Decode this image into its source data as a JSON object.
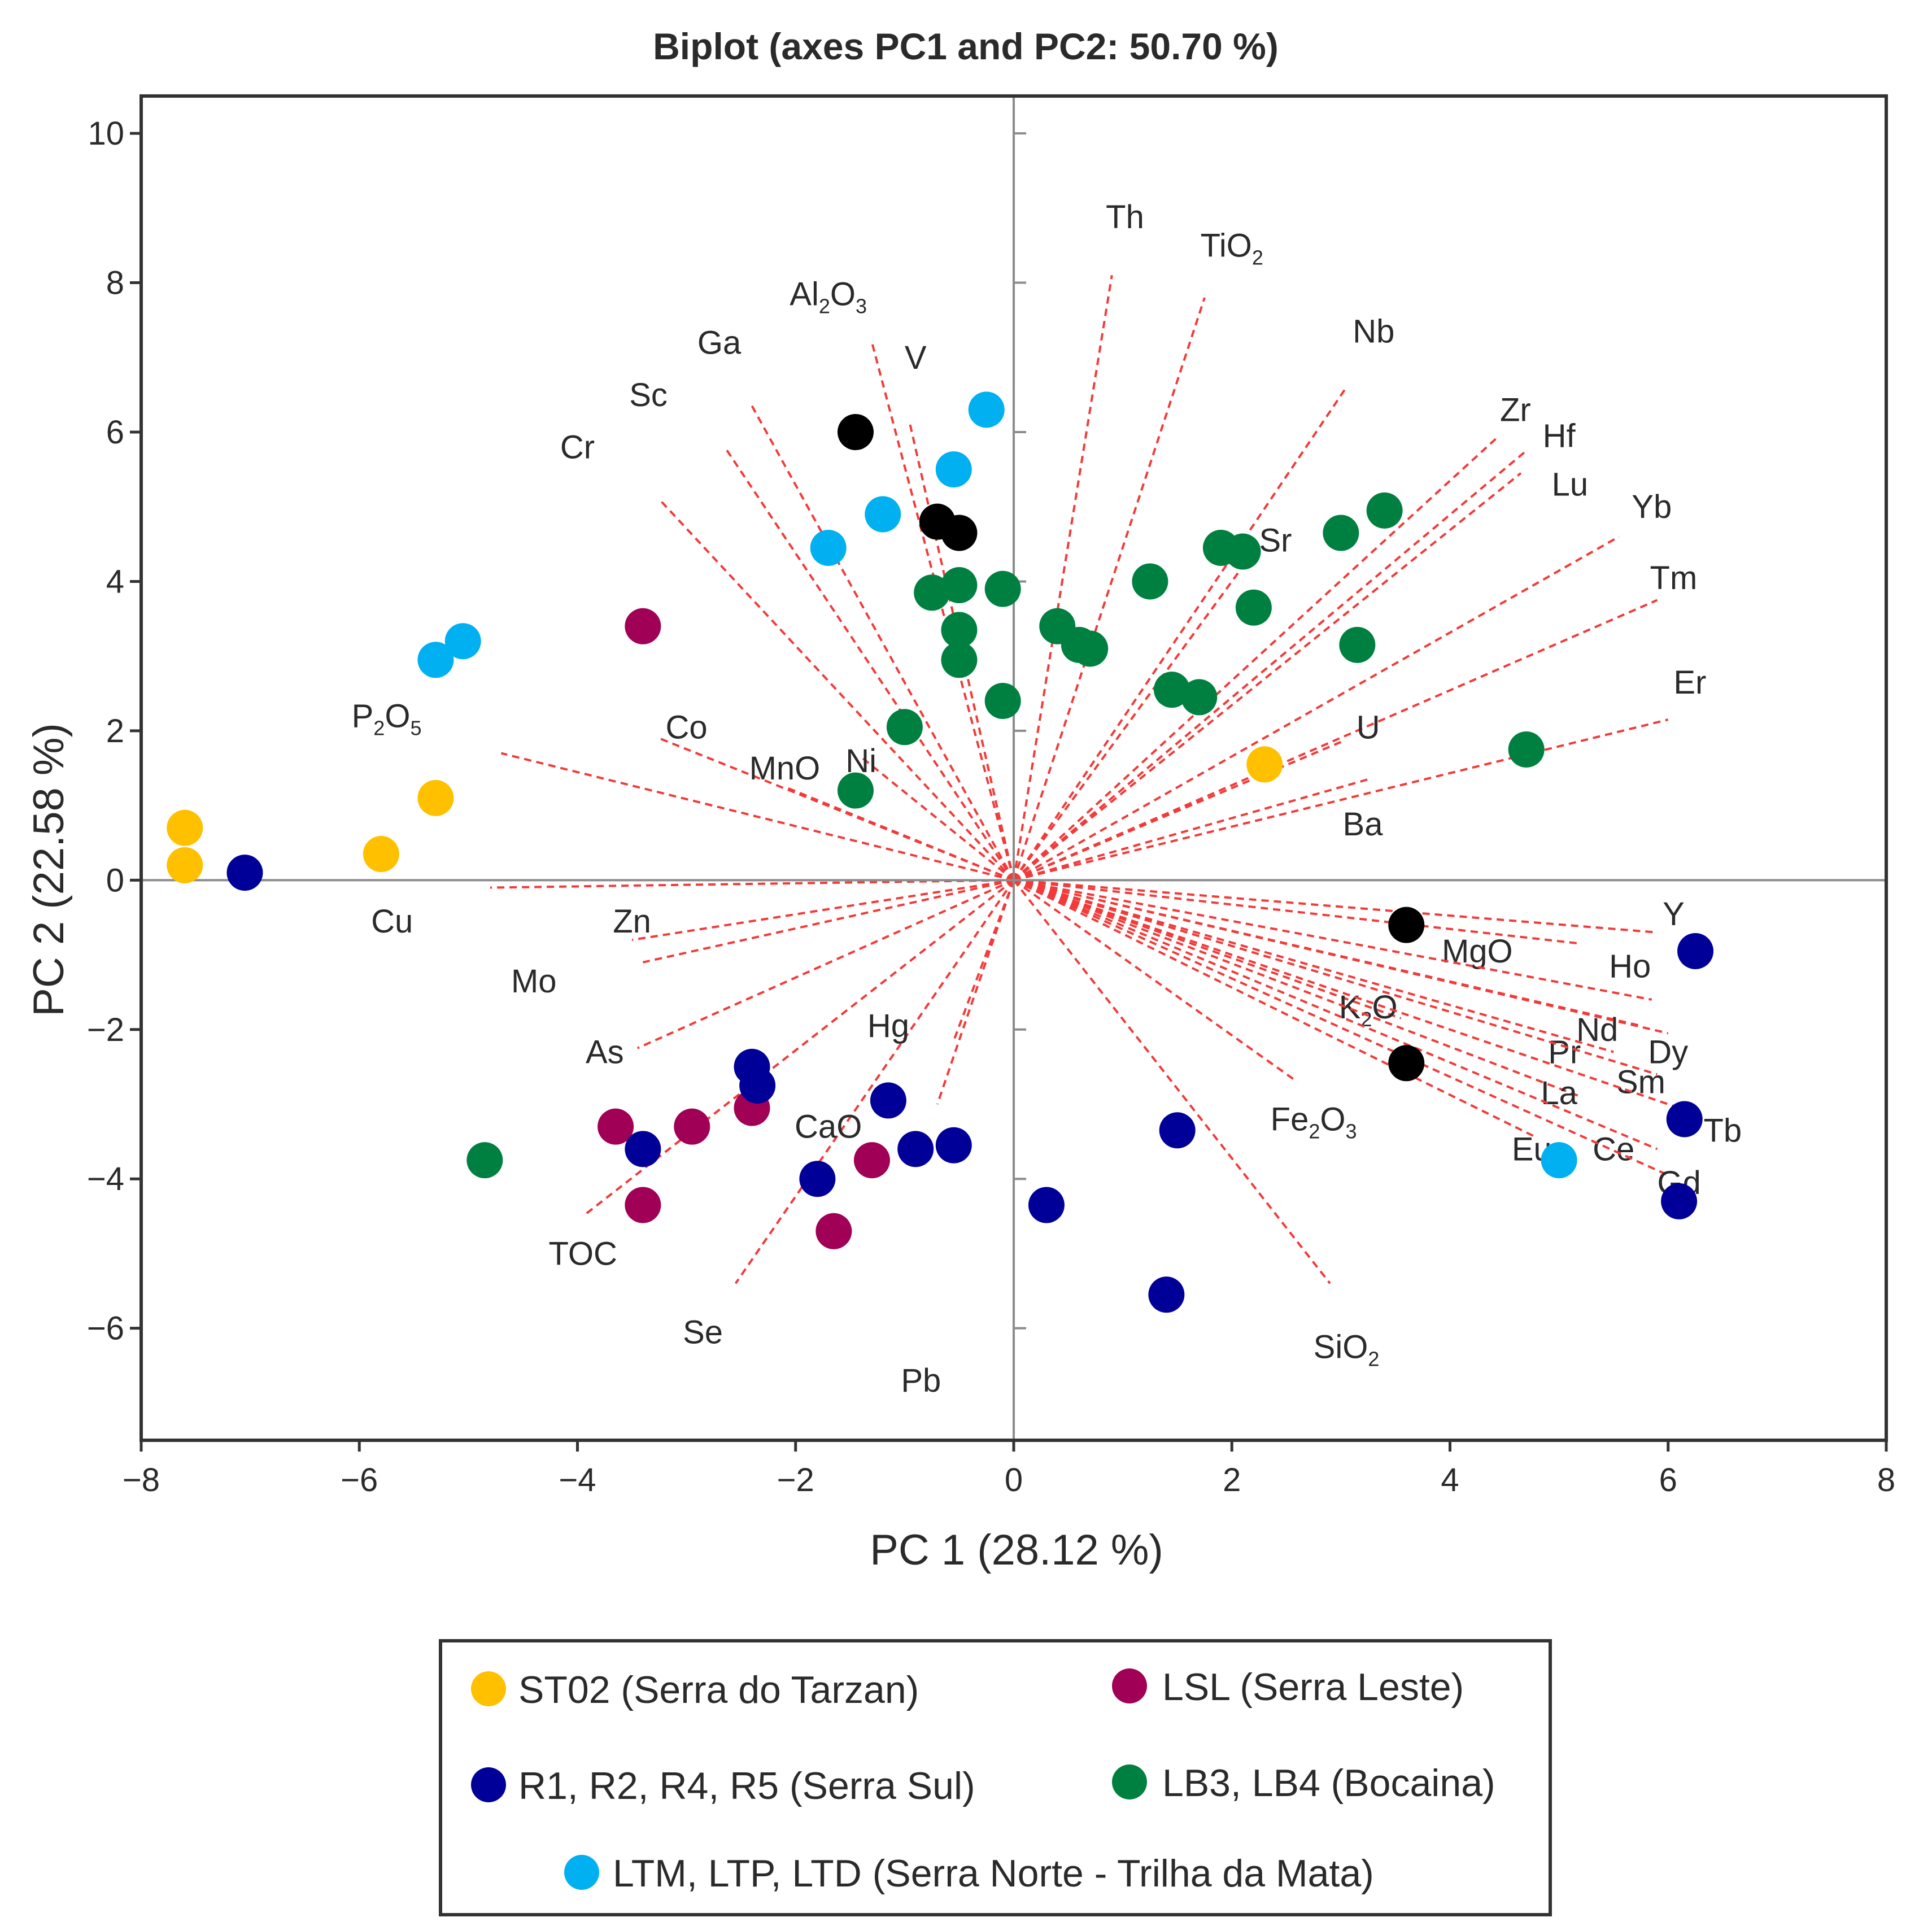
{
  "chart_data": {
    "type": "scatter",
    "title": "Biplot (axes PC1 and PC2: 50.70 %)",
    "xlabel": "PC 1 (28.12 %)",
    "ylabel": "PC 2 (22.58 %)",
    "xlim": [
      -8,
      8
    ],
    "ylim": [
      -7.5,
      10.5
    ],
    "xticks": [
      -8,
      -6,
      -4,
      -2,
      0,
      2,
      4,
      6,
      8
    ],
    "yticks": [
      -6,
      -4,
      -2,
      0,
      2,
      4,
      6,
      8,
      10
    ],
    "xtick_labels": [
      "−8",
      "−6",
      "−4",
      "−2",
      "0",
      "2",
      "4",
      "6",
      "8"
    ],
    "ytick_labels": [
      "−6",
      "−4",
      "−2",
      "0",
      "2",
      "4",
      "6",
      "8",
      "10"
    ],
    "legend_position": "bottom",
    "series": [
      {
        "name": "ST02 (Serra do Tarzan)",
        "color": "#FFC000",
        "points": [
          [
            -7.6,
            0.7
          ],
          [
            -7.6,
            0.2
          ],
          [
            -5.3,
            1.1
          ],
          [
            -5.8,
            0.35
          ],
          [
            2.3,
            1.55
          ]
        ]
      },
      {
        "name": "LSL (Serra Leste)",
        "color": "#A00055",
        "points": [
          [
            -3.4,
            3.4
          ],
          [
            -3.65,
            -3.3
          ],
          [
            -3.4,
            -4.35
          ],
          [
            -2.95,
            -3.3
          ],
          [
            -2.4,
            -3.05
          ],
          [
            -1.3,
            -3.75
          ],
          [
            -1.65,
            -4.7
          ]
        ]
      },
      {
        "name": "R1, R2, R4, R5 (Serra Sul)",
        "color": "#000099",
        "points": [
          [
            -7.05,
            0.1
          ],
          [
            -3.4,
            -3.6
          ],
          [
            -2.4,
            -2.5
          ],
          [
            -2.35,
            -2.75
          ],
          [
            -1.15,
            -2.95
          ],
          [
            -1.8,
            -4.0
          ],
          [
            -0.9,
            -3.6
          ],
          [
            -0.55,
            -3.55
          ],
          [
            0.3,
            -4.35
          ],
          [
            1.5,
            -3.35
          ],
          [
            1.4,
            -5.55
          ],
          [
            6.25,
            -0.95
          ],
          [
            6.15,
            -3.2
          ],
          [
            6.1,
            -4.3
          ]
        ]
      },
      {
        "name": "LB3, LB4 (Bocaina)",
        "color": "#008040",
        "points": [
          [
            -4.85,
            -3.75
          ],
          [
            -1.45,
            1.2
          ],
          [
            -1.0,
            2.05
          ],
          [
            -0.75,
            3.85
          ],
          [
            -0.5,
            3.95
          ],
          [
            -0.5,
            3.35
          ],
          [
            -0.5,
            2.95
          ],
          [
            -0.1,
            3.9
          ],
          [
            -0.1,
            2.4
          ],
          [
            0.4,
            3.4
          ],
          [
            0.6,
            3.15
          ],
          [
            0.7,
            3.1
          ],
          [
            1.25,
            4.0
          ],
          [
            1.45,
            2.55
          ],
          [
            1.7,
            2.45
          ],
          [
            1.9,
            4.45
          ],
          [
            2.1,
            4.4
          ],
          [
            2.2,
            3.65
          ],
          [
            3.0,
            4.65
          ],
          [
            3.15,
            3.15
          ],
          [
            3.4,
            4.95
          ],
          [
            4.7,
            1.75
          ]
        ]
      },
      {
        "name": "LTM, LTP, LTD (Serra Norte - Trilha da Mata)",
        "color": "#00B0F0",
        "points": [
          [
            -5.3,
            2.95
          ],
          [
            -5.05,
            3.2
          ],
          [
            -1.7,
            4.45
          ],
          [
            -1.2,
            4.9
          ],
          [
            -0.55,
            5.5
          ],
          [
            -0.25,
            6.3
          ],
          [
            5.0,
            -3.75
          ]
        ]
      },
      {
        "name": "",
        "color": "#000000",
        "points": [
          [
            -1.45,
            6.0
          ],
          [
            -0.7,
            4.8
          ],
          [
            -0.5,
            4.65
          ],
          [
            3.6,
            -0.6
          ],
          [
            3.6,
            -2.45
          ]
        ]
      }
    ],
    "loadings": [
      {
        "label": "Th",
        "x": 0.9,
        "y": 8.1,
        "lx": 1.02,
        "ly": 8.88
      },
      {
        "label": "TiO",
        "sub": "2",
        "x": 1.75,
        "y": 7.8,
        "lx": 2.0,
        "ly": 8.5
      },
      {
        "label": "Nb",
        "x": 3.05,
        "y": 6.6,
        "lx": 3.3,
        "ly": 7.35
      },
      {
        "label": "Zr",
        "x": 4.45,
        "y": 5.95,
        "lx": 4.6,
        "ly": 6.3
      },
      {
        "label": "Hf",
        "x": 4.7,
        "y": 5.75,
        "lx": 5.0,
        "ly": 5.95
      },
      {
        "label": "Lu",
        "x": 4.65,
        "y": 5.45,
        "lx": 5.1,
        "ly": 5.3
      },
      {
        "label": "Yb",
        "x": 5.55,
        "y": 4.6,
        "lx": 5.85,
        "ly": 5.0
      },
      {
        "label": "Tm",
        "x": 5.9,
        "y": 3.75,
        "lx": 6.05,
        "ly": 4.05
      },
      {
        "label": "Er",
        "x": 6.0,
        "y": 2.15,
        "lx": 6.2,
        "ly": 2.65
      },
      {
        "label": "U",
        "x": 3.0,
        "y": 1.85,
        "lx": 3.25,
        "ly": 2.05
      },
      {
        "label": "Ba",
        "x": 3.25,
        "y": 1.35,
        "lx": 3.2,
        "ly": 0.75
      },
      {
        "label": "Sr",
        "x": 2.15,
        "y": 4.3,
        "lx": 2.4,
        "ly": 4.55
      },
      {
        "label": "Y",
        "x": 5.9,
        "y": -0.7,
        "lx": 6.05,
        "ly": -0.45
      },
      {
        "label": "MgO",
        "x": 5.2,
        "y": -0.85,
        "lx": 4.25,
        "ly": -0.95
      },
      {
        "label": "Ho",
        "x": 5.85,
        "y": -1.6,
        "lx": 5.65,
        "ly": -1.15
      },
      {
        "label": "K",
        "sub": "2",
        "suffix": "O",
        "x": 3.55,
        "y": -1.85,
        "lx": 3.25,
        "ly": -1.7
      },
      {
        "label": "Nd",
        "x": 5.75,
        "y": -1.95,
        "lx": 5.35,
        "ly": -2.0
      },
      {
        "label": "Dy",
        "x": 6.0,
        "y": -2.05,
        "lx": 6.0,
        "ly": -2.3
      },
      {
        "label": "Pr",
        "x": 5.5,
        "y": -2.3,
        "lx": 5.05,
        "ly": -2.3
      },
      {
        "label": "Sm",
        "x": 5.9,
        "y": -2.6,
        "lx": 5.75,
        "ly": -2.7
      },
      {
        "label": "La",
        "x": 5.2,
        "y": -2.9,
        "lx": 5.0,
        "ly": -2.85
      },
      {
        "label": "Tb",
        "x": 6.1,
        "y": -3.05,
        "lx": 6.5,
        "ly": -3.35
      },
      {
        "label": "Ce",
        "x": 5.9,
        "y": -3.6,
        "lx": 5.5,
        "ly": -3.6
      },
      {
        "label": "Eu",
        "x": 4.8,
        "y": -3.45,
        "lx": 4.75,
        "ly": -3.6
      },
      {
        "label": "Gd",
        "x": 6.0,
        "y": -3.95,
        "lx": 6.1,
        "ly": -4.05
      },
      {
        "label": "Fe",
        "sub": "2",
        "suffix": "O",
        "sub2": "3",
        "x": 2.6,
        "y": -2.7,
        "lx": 2.75,
        "ly": -3.2
      },
      {
        "label": "SiO",
        "sub": "2",
        "x": 2.9,
        "y": -5.4,
        "lx": 3.05,
        "ly": -6.25
      },
      {
        "label": "Pb",
        "x": 0.0,
        "y": -6.05,
        "lx": -0.85,
        "ly": -6.7
      },
      {
        "label": "Se",
        "x": -2.55,
        "y": -5.4,
        "lx": -2.85,
        "ly": -6.05
      },
      {
        "label": "TOC",
        "x": -3.95,
        "y": -4.5,
        "lx": -3.95,
        "ly": -5.0
      },
      {
        "label": "CaO",
        "x": -0.7,
        "y": -3.0,
        "lx": -1.7,
        "ly": -3.3
      },
      {
        "label": "Hg",
        "x": -0.55,
        "y": -2.15,
        "lx": -1.15,
        "ly": -1.95
      },
      {
        "label": "As",
        "x": -3.45,
        "y": -2.25,
        "lx": -3.75,
        "ly": -2.3
      },
      {
        "label": "Mo",
        "x": -3.4,
        "y": -1.1,
        "lx": -4.4,
        "ly": -1.35
      },
      {
        "label": "Zn",
        "x": -3.5,
        "y": -0.8,
        "lx": -3.5,
        "ly": -0.55
      },
      {
        "label": "Cu",
        "x": -4.8,
        "y": -0.1,
        "lx": -5.7,
        "ly": -0.55
      },
      {
        "label": "P",
        "sub": "2",
        "suffix": "O",
        "sub2": "5",
        "x": -4.7,
        "y": 1.7,
        "lx": -5.75,
        "ly": 2.2
      },
      {
        "label": "Co",
        "x": -3.25,
        "y": 1.9,
        "lx": -3.0,
        "ly": 2.05
      },
      {
        "label": "MnO",
        "x": -2.1,
        "y": 1.25,
        "lx": -2.1,
        "ly": 1.5
      },
      {
        "label": "Ni",
        "x": -1.4,
        "y": 1.65,
        "lx": -1.4,
        "ly": 1.6
      },
      {
        "label": "Cr",
        "x": -3.25,
        "y": 5.1,
        "lx": -4.0,
        "ly": 5.8
      },
      {
        "label": "Sc",
        "x": -2.65,
        "y": 5.8,
        "lx": -3.35,
        "ly": 6.5
      },
      {
        "label": "Ga",
        "x": -2.4,
        "y": 6.35,
        "lx": -2.7,
        "ly": 7.2
      },
      {
        "label": "Al",
        "sub": "2",
        "suffix": "O",
        "sub2": "3",
        "x": -1.3,
        "y": 7.2,
        "lx": -1.7,
        "ly": 7.85
      },
      {
        "label": "V",
        "x": -0.95,
        "y": 6.1,
        "lx": -0.9,
        "ly": 7.0
      }
    ]
  },
  "legend": {
    "items": [
      {
        "label": "ST02 (Serra do Tarzan)",
        "color": "#FFC000"
      },
      {
        "label": "LSL (Serra Leste)",
        "color": "#A00055"
      },
      {
        "label": "R1, R2, R4, R5 (Serra Sul)",
        "color": "#000099"
      },
      {
        "label": "LB3, LB4 (Bocaina)",
        "color": "#008040"
      },
      {
        "label": "LTM, LTP, LTD (Serra Norte - Trilha da Mata)",
        "color": "#00B0F0"
      }
    ]
  }
}
